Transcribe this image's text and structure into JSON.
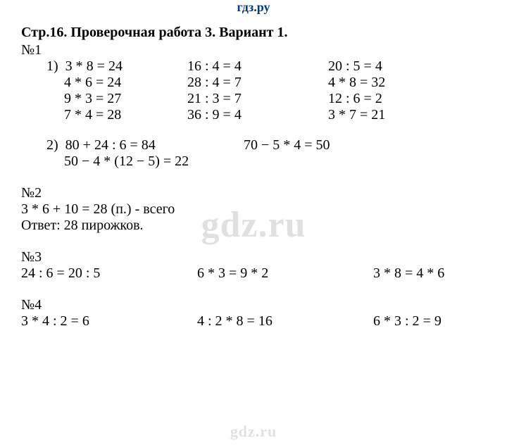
{
  "brand_top": "гдз.ру",
  "watermark": "gdz.ru",
  "brand_bottom": "gdz.ru",
  "title": "Стр.16. Проверочная работа 3. Вариант 1.",
  "task1": {
    "label": "№1",
    "part1": {
      "marker": "1)",
      "rows": [
        {
          "col1": "3 * 8 = 24",
          "col2": "16 : 4 = 4",
          "col3": "20 : 5 = 4"
        },
        {
          "col1": "4 * 6 = 24",
          "col2": "28 : 4 = 7",
          "col3": "4 * 8 = 32"
        },
        {
          "col1": "9 * 3 = 27",
          "col2": "21 : 3 = 7",
          "col3": "12 : 6 = 2"
        },
        {
          "col1": "7 * 4 = 28",
          "col2": "36 : 9 = 4",
          "col3": "3 * 7 = 21"
        }
      ]
    },
    "part2": {
      "marker": "2)",
      "rows": [
        {
          "col1": "80 + 24 : 6 = 84",
          "col2": "70 − 5 * 4 = 50"
        },
        {
          "col1": "50 − 4 * (12 − 5) = 22",
          "col2": ""
        }
      ]
    }
  },
  "task2": {
    "label": "№2",
    "line1": "3 * 6 + 10 = 28 (п.) - всего",
    "line2": "Ответ: 28 пирожков."
  },
  "task3": {
    "label": "№3",
    "cols": {
      "c1": "24 : 6 = 20 : 5",
      "c2": "6 * 3 = 9 * 2",
      "c3": "3 * 8 = 4 * 6"
    }
  },
  "task4": {
    "label": "№4",
    "cols": {
      "c1": "3 * 4 : 2 = 6",
      "c2": "4 : 2 * 8 = 16",
      "c3": "6 * 3 : 2 = 9"
    }
  }
}
